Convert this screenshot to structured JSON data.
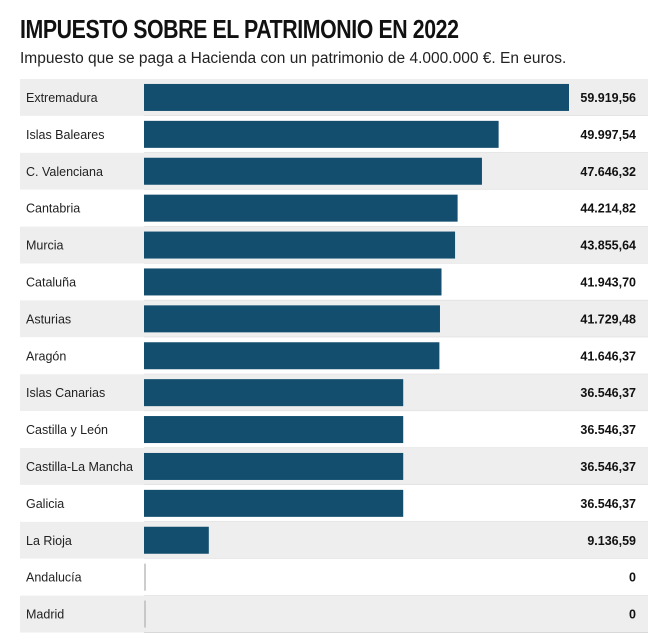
{
  "chart_data": {
    "type": "bar",
    "orientation": "horizontal",
    "title": "IMPUESTO SOBRE EL PATRIMONIO EN 2022",
    "subtitle": "Impuesto que se paga a Hacienda con un patrimonio de 4.000.000 €. En euros.",
    "categories": [
      "Extremadura",
      "Islas Baleares",
      "C. Valenciana",
      "Cantabria",
      "Murcia",
      "Cataluña",
      "Asturias",
      "Aragón",
      "Islas Canarias",
      "Castilla  y León",
      "Castilla-La Mancha",
      "Galicia",
      "La Rioja",
      "Andalucía",
      "Madrid"
    ],
    "values": [
      59919.56,
      49997.54,
      47646.32,
      44214.82,
      43855.64,
      41943.7,
      41729.48,
      41646.37,
      36546.37,
      36546.37,
      36546.37,
      36546.37,
      9136.59,
      0,
      0
    ],
    "value_labels": [
      "59.919,56",
      "49.997,54",
      "47.646,32",
      "44.214,82",
      "43.855,64",
      "41.943,70",
      "41.729,48",
      "41.646,37",
      "36.546,37",
      "36.546,37",
      "36.546,37",
      "36.546,37",
      "9.136,59",
      "0",
      "0"
    ],
    "xlim": [
      0,
      59919.56
    ],
    "bar_color": "#134e6f",
    "row_color_alternate": "#eeeeee",
    "grid": false
  }
}
